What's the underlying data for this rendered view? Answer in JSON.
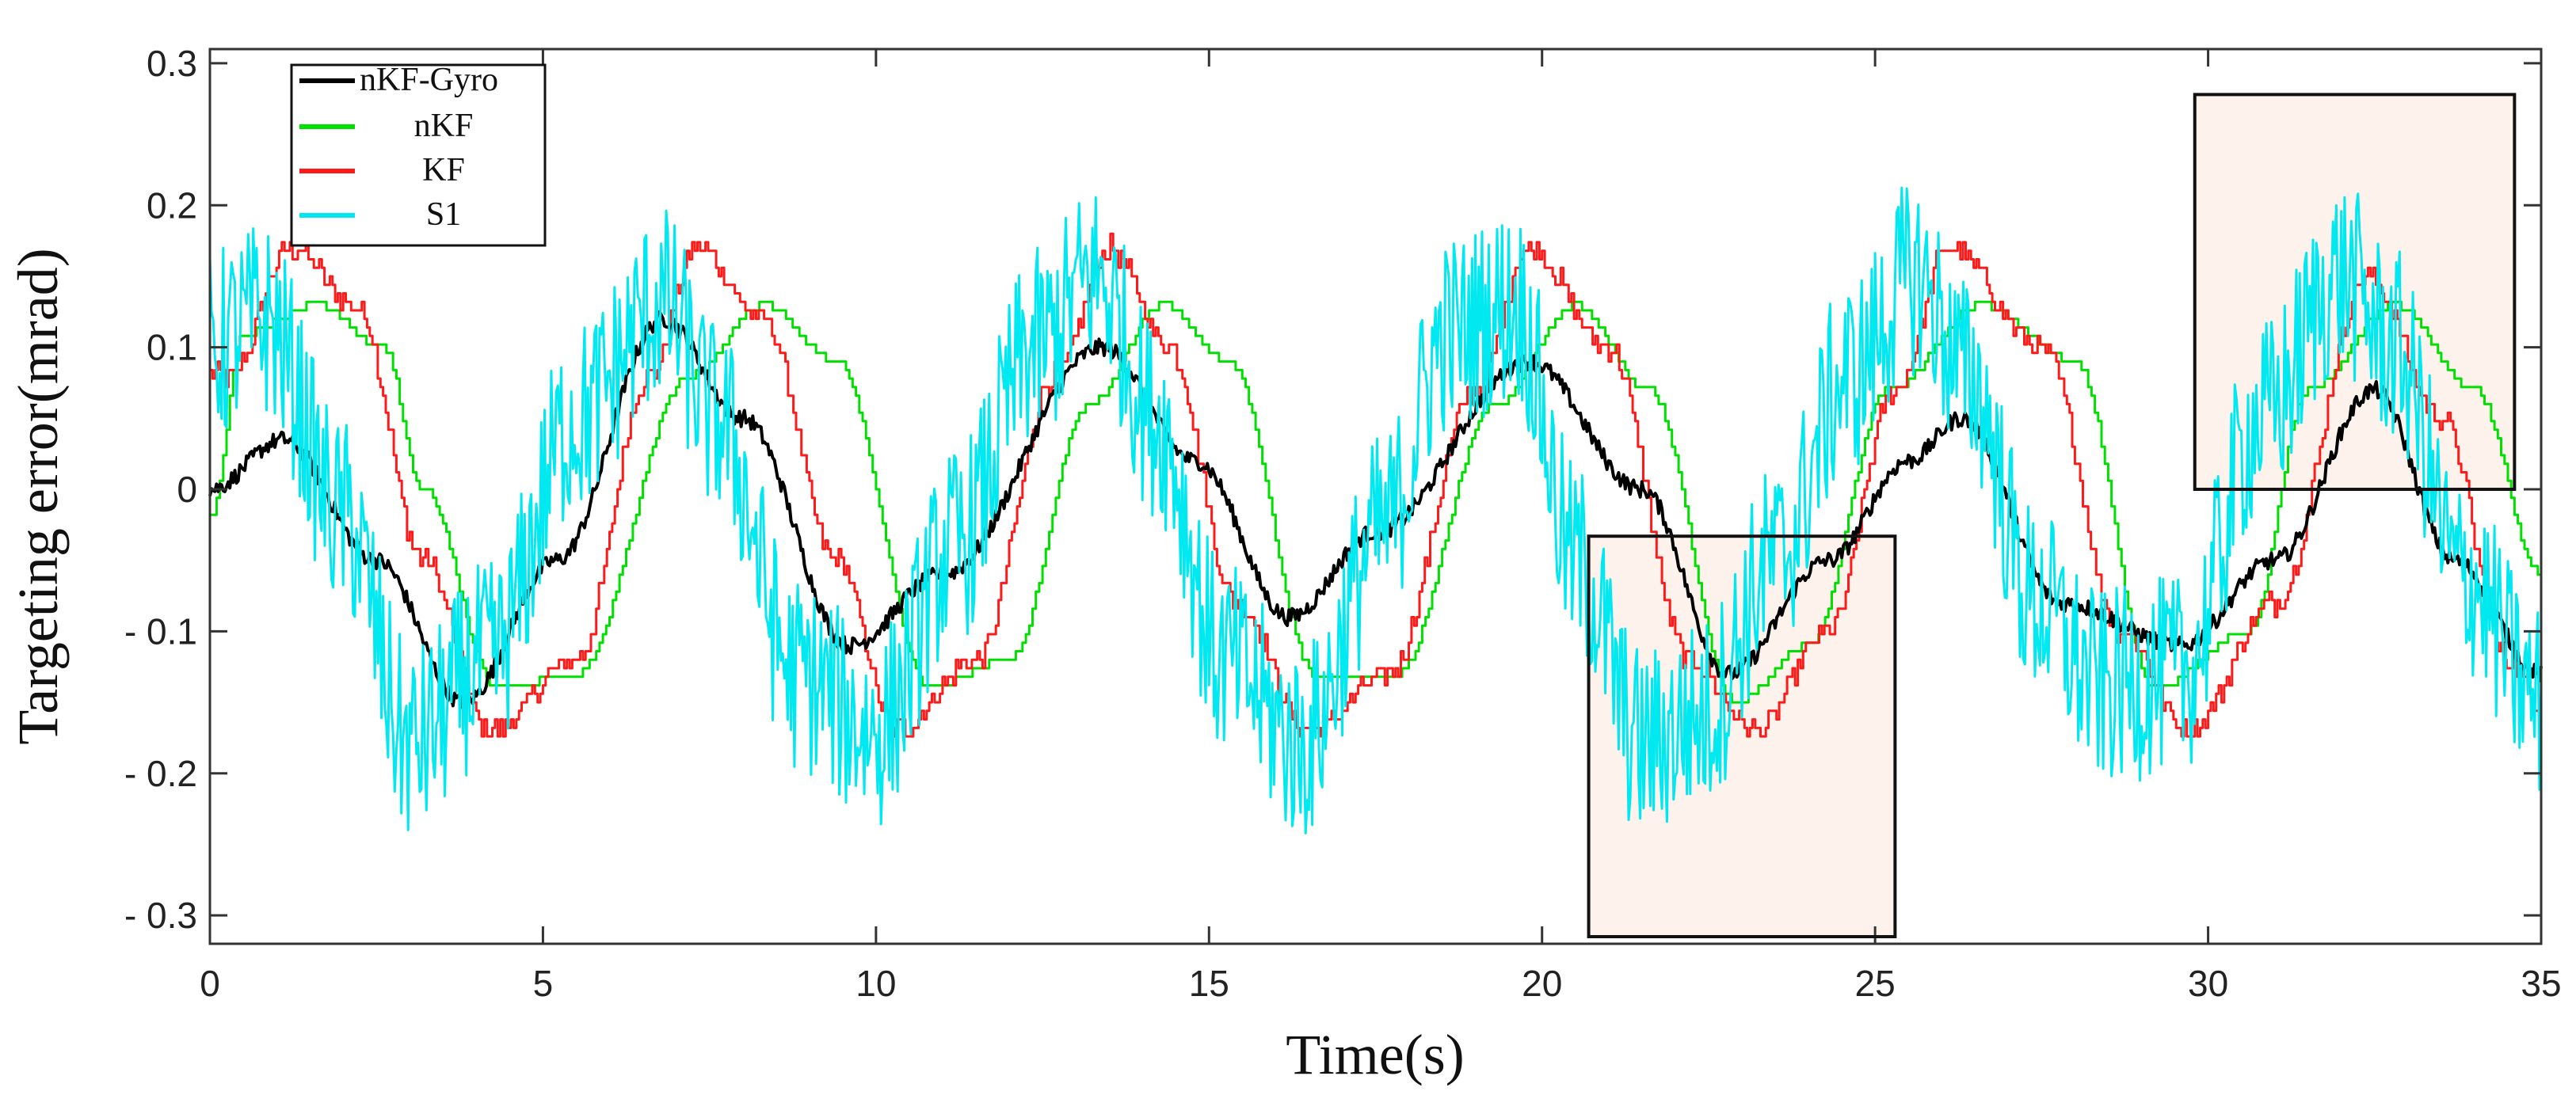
{
  "chart_data": {
    "type": "line",
    "title": "",
    "xlabel": "Time(s)",
    "ylabel": "Targeting error(mrad)",
    "xlim": [
      0,
      35
    ],
    "ylim": [
      -0.32,
      0.31
    ],
    "xticks": [
      0,
      5,
      10,
      15,
      20,
      25,
      30,
      35
    ],
    "xtick_labels": [
      "0",
      "5",
      "10",
      "15",
      "20",
      "25",
      "30",
      "35"
    ],
    "yticks": [
      0.3,
      0.2,
      0.1,
      0,
      -0.1,
      -0.2,
      -0.3
    ],
    "ytick_labels": [
      "0.3",
      "0.2",
      "0.1",
      "0",
      "- 0.1",
      "- 0.2",
      "- 0.3"
    ],
    "grid": false,
    "legend_position": "top-left",
    "series": [
      {
        "name": "nKF-Gyro",
        "color": "#000000",
        "x": [
          0,
          1.1,
          2.5,
          3.8,
          5.2,
          6.8,
          8,
          9.6,
          11,
          13.4,
          14.8,
          16.2,
          17.5,
          19.8,
          21.5,
          22.8,
          24.3,
          25.5,
          26.3,
          27.8,
          29.6,
          31,
          32.5,
          33.7,
          35
        ],
        "values": [
          0,
          0.035,
          -0.05,
          -0.15,
          -0.05,
          0.12,
          0.05,
          -0.11,
          -0.06,
          0.1,
          0.02,
          -0.09,
          -0.03,
          0.09,
          0.0,
          -0.13,
          -0.05,
          0.02,
          0.05,
          -0.08,
          -0.11,
          -0.05,
          0.07,
          -0.05,
          -0.13
        ],
        "noise": 0.006,
        "step": 0.025
      },
      {
        "name": "nKF",
        "color": "#00e000",
        "x": [
          0,
          0.5,
          1.6,
          2.6,
          3.2,
          4.3,
          5.5,
          7.2,
          8.3,
          9.4,
          10.8,
          12,
          13.2,
          14.3,
          15.3,
          16.6,
          17.8,
          19.3,
          20.5,
          21.6,
          22.9,
          24,
          25.2,
          26.6,
          28,
          29.2,
          30.6,
          31.5,
          32.8,
          34,
          35
        ],
        "values": [
          -0.02,
          0.11,
          0.13,
          0.1,
          0.0,
          -0.14,
          -0.13,
          0.08,
          0.13,
          0.09,
          -0.14,
          -0.12,
          0.06,
          0.13,
          0.09,
          -0.13,
          -0.13,
          0.06,
          0.13,
          0.07,
          -0.15,
          -0.11,
          0.07,
          0.13,
          0.09,
          -0.14,
          -0.1,
          0.07,
          0.13,
          0.07,
          -0.06
        ],
        "noise": 0.0,
        "step": 0.05
      },
      {
        "name": "KF",
        "color": "#ff1a1a",
        "x": [
          0,
          0.3,
          1.2,
          2.2,
          3.2,
          4.2,
          5.5,
          6.6,
          7.3,
          8.3,
          9.4,
          10.3,
          11.5,
          12.7,
          13.5,
          14.4,
          15.4,
          16.5,
          17.7,
          19.0,
          19.8,
          21.0,
          22.2,
          23.2,
          24.3,
          25.3,
          26.1,
          27.5,
          28.7,
          29.7,
          31.0,
          32.4,
          33.5,
          34.5,
          35
        ],
        "values": [
          0.08,
          0.08,
          0.17,
          0.13,
          -0.05,
          -0.17,
          -0.12,
          0.08,
          0.17,
          0.12,
          -0.05,
          -0.17,
          -0.12,
          0.08,
          0.17,
          0.1,
          -0.08,
          -0.17,
          -0.13,
          0.07,
          0.17,
          0.1,
          -0.12,
          -0.17,
          -0.1,
          0.07,
          0.17,
          0.1,
          -0.1,
          -0.17,
          -0.08,
          0.15,
          0.05,
          -0.12,
          -0.15
        ],
        "noise": 0.008,
        "step": 0.04
      },
      {
        "name": "S1",
        "color": "#00e8f0",
        "x": [
          0,
          0.8,
          2.0,
          3.0,
          4.2,
          5.5,
          6.8,
          7.6,
          8.8,
          10.0,
          11.2,
          12.4,
          13.3,
          14.2,
          15.2,
          16.4,
          17.6,
          18.6,
          19.6,
          20.5,
          21.5,
          22.4,
          23.5,
          24.6,
          25.6,
          26.4,
          27.4,
          28.4,
          29.6,
          30.8,
          32.0,
          32.8,
          33.8,
          35
        ],
        "values": [
          0.1,
          0.12,
          -0.02,
          -0.18,
          -0.12,
          0.05,
          0.13,
          0.05,
          -0.13,
          -0.17,
          -0.04,
          0.1,
          0.15,
          0.05,
          -0.12,
          -0.18,
          -0.03,
          0.11,
          0.13,
          -0.05,
          -0.18,
          -0.16,
          -0.05,
          0.08,
          0.15,
          0.08,
          -0.08,
          -0.14,
          -0.13,
          0.05,
          0.15,
          0.1,
          -0.06,
          -0.15
        ],
        "noise": 0.07,
        "step": 0.025
      }
    ],
    "highlight_boxes": [
      {
        "name": "zoom-box-1",
        "x_range": [
          20.7,
          25.3
        ],
        "y_range": [
          -0.315,
          -0.033
        ]
      },
      {
        "name": "zoom-box-2",
        "x_range": [
          29.8,
          34.6
        ],
        "y_range": [
          0.0,
          0.278
        ]
      }
    ],
    "legend_order": [
      "nKF-Gyro",
      "nKF",
      "KF",
      "S1"
    ],
    "legend_labels": [
      "nKF-Gyro",
      "nKF",
      "KF",
      "S1"
    ]
  }
}
